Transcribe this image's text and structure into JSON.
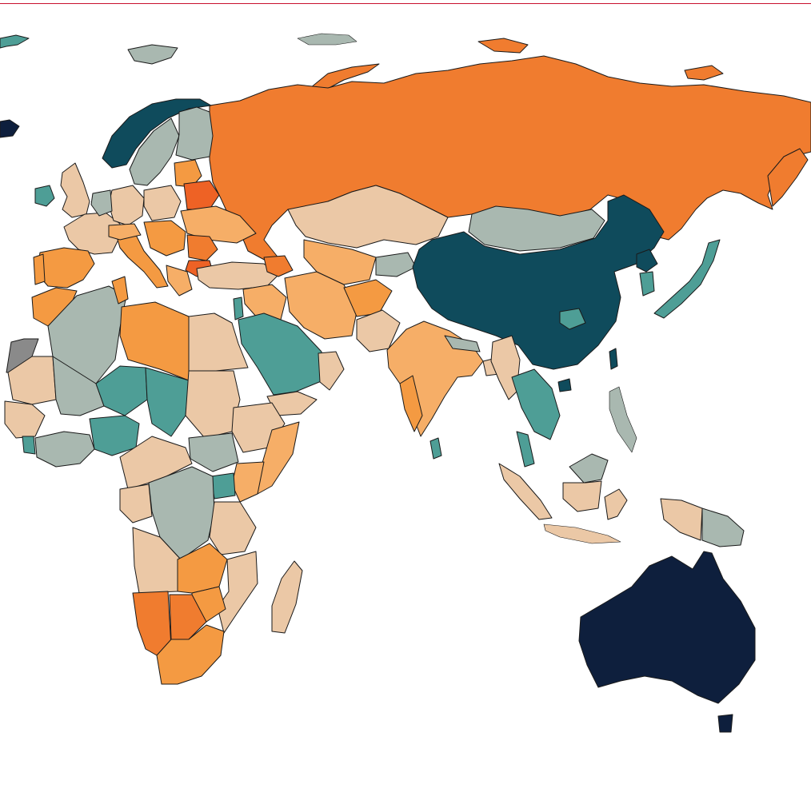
{
  "map": {
    "palette": {
      "navy": "#0e1f3d",
      "dark_teal": "#0f4b5c",
      "teal": "#4e9e96",
      "grey_teal": "#a9b8b0",
      "beige": "#ebc8a6",
      "light_orange": "#f6ae67",
      "orange": "#f49a42",
      "deep_orange": "#f07c2f",
      "red_orange": "#ee6225",
      "no_data": "#8a8a8a",
      "rule": "#c8102e"
    }
  }
}
